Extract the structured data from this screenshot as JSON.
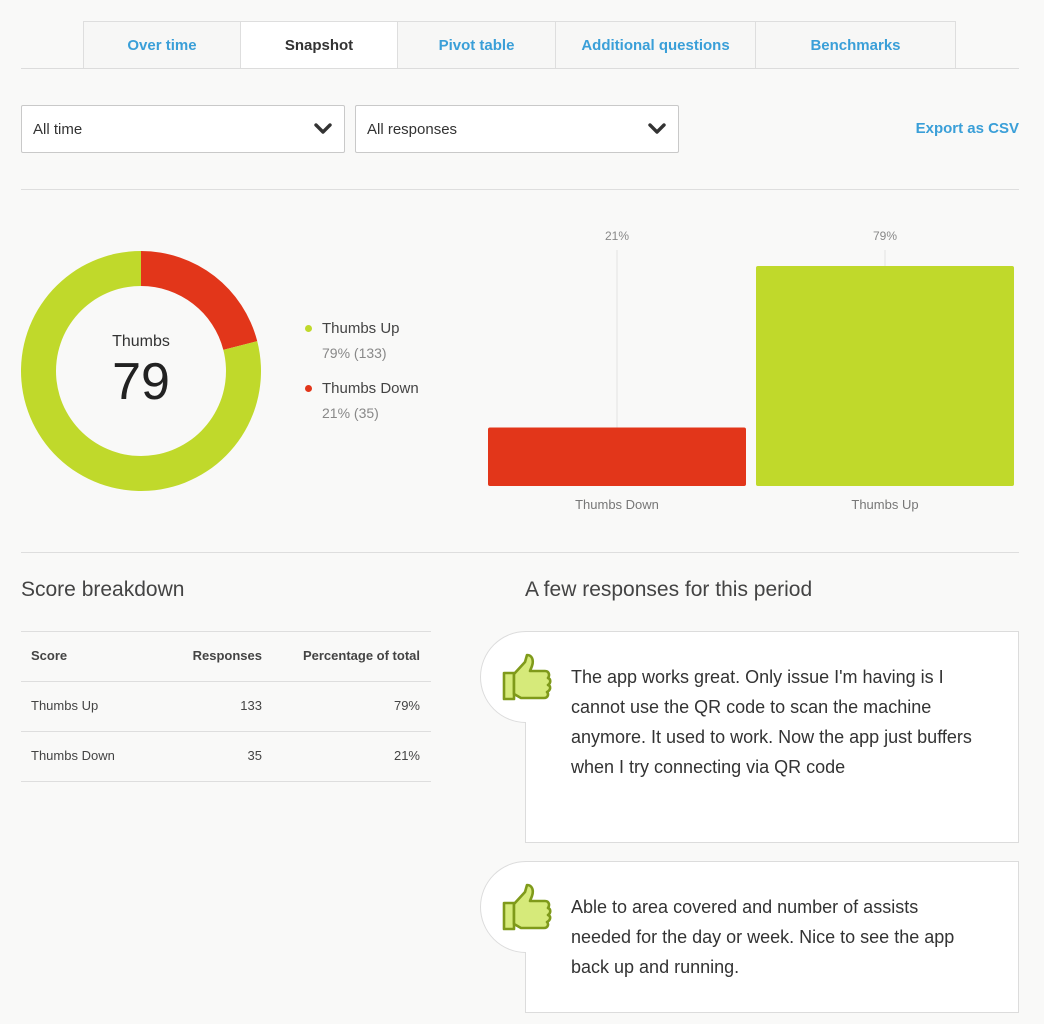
{
  "tabs": [
    {
      "label": "Over time",
      "active": false
    },
    {
      "label": "Snapshot",
      "active": true
    },
    {
      "label": "Pivot table",
      "active": false
    },
    {
      "label": "Additional questions",
      "active": false
    },
    {
      "label": "Benchmarks",
      "active": false
    }
  ],
  "filters": {
    "time": "All time",
    "responses": "All responses",
    "export_label": "Export as CSV"
  },
  "donut": {
    "title": "Thumbs",
    "score": "79"
  },
  "legend": [
    {
      "name": "Thumbs Up",
      "value": "79% (133)"
    },
    {
      "name": "Thumbs Down",
      "value": "21% (35)"
    }
  ],
  "colors": {
    "thumbs_up": "#c0d92b",
    "thumbs_down": "#e2361a",
    "accent": "#3a9fd8"
  },
  "chart_data": {
    "type": "bar",
    "categories": [
      "Thumbs Down",
      "Thumbs Up"
    ],
    "values": [
      21,
      79
    ],
    "data_labels": [
      "21%",
      "79%"
    ],
    "ylim": [
      0,
      100
    ],
    "grid": false,
    "donut": {
      "type": "pie",
      "slices": [
        {
          "label": "Thumbs Up",
          "value": 79,
          "count": 133
        },
        {
          "label": "Thumbs Down",
          "value": 21,
          "count": 35
        }
      ]
    }
  },
  "score_breakdown": {
    "title": "Score breakdown",
    "headers": [
      "Score",
      "Responses",
      "Percentage of total"
    ],
    "rows": [
      [
        "Thumbs Up",
        "133",
        "79%"
      ],
      [
        "Thumbs Down",
        "35",
        "21%"
      ]
    ]
  },
  "responses": {
    "title": "A few responses for this period",
    "items": [
      {
        "icon": "thumbs-up-icon",
        "text": "The app works great. Only issue I'm having is I cannot use the QR code to scan the machine anymore. It used to work. Now the app just buffers when I try connecting via QR code"
      },
      {
        "icon": "thumbs-up-icon",
        "text": "Able to area covered and number of assists needed for the day or week. Nice to see the app back up and running."
      }
    ]
  }
}
